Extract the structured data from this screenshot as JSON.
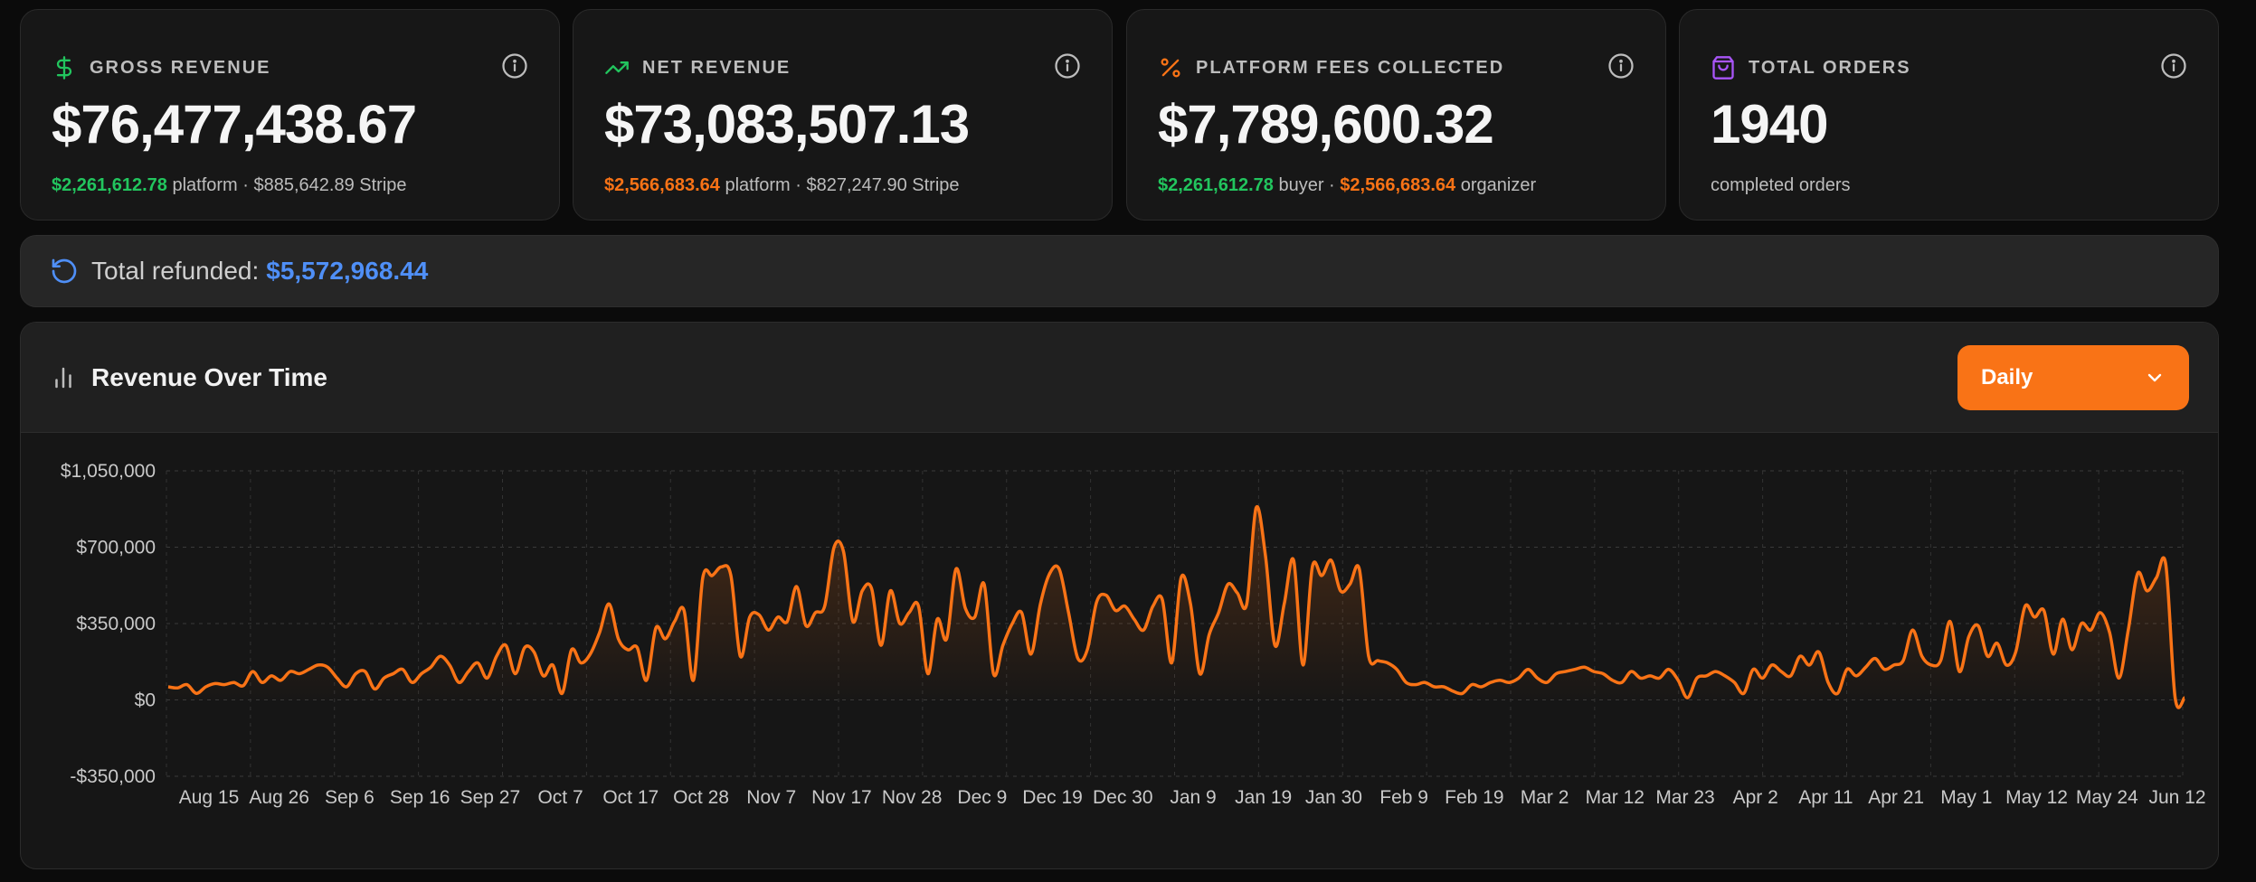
{
  "cards": [
    {
      "label": "GROSS REVENUE",
      "icon": "dollar-icon",
      "icon_color": "#22c55e",
      "value": "$76,477,438.67",
      "sub": [
        {
          "text": "$2,261,612.78",
          "style": "green"
        },
        {
          "text": " platform · $885,642.89 Stripe",
          "style": "plain"
        }
      ]
    },
    {
      "label": "NET REVENUE",
      "icon": "trending-up-icon",
      "icon_color": "#22c55e",
      "value": "$73,083,507.13",
      "sub": [
        {
          "text": "$2,566,683.64",
          "style": "orange"
        },
        {
          "text": " platform · $827,247.90 Stripe",
          "style": "plain"
        }
      ]
    },
    {
      "label": "PLATFORM FEES COLLECTED",
      "icon": "percent-icon",
      "icon_color": "#f97316",
      "value": "$7,789,600.32",
      "sub": [
        {
          "text": "$2,261,612.78",
          "style": "green"
        },
        {
          "text": " buyer · ",
          "style": "plain"
        },
        {
          "text": "$2,566,683.64",
          "style": "orange"
        },
        {
          "text": " organizer",
          "style": "plain"
        }
      ]
    },
    {
      "label": "TOTAL ORDERS",
      "icon": "shopping-bag-icon",
      "icon_color": "#a855f7",
      "value": "1940",
      "sub": [
        {
          "text": "completed orders",
          "style": "plain"
        }
      ]
    }
  ],
  "refund": {
    "label": "Total refunded:",
    "value": "$5,572,968.44",
    "icon": "refresh-icon",
    "color": "#4f8ff7"
  },
  "chart": {
    "title": "Revenue Over Time",
    "icon": "bar-chart-icon",
    "period_select": {
      "value": "Daily",
      "icon": "chevron-down-icon"
    },
    "accent": "#f97316"
  },
  "chart_data": {
    "type": "area",
    "title": "Revenue Over Time",
    "xlabel": "",
    "ylabel": "",
    "ylim": [
      -350000,
      1050000
    ],
    "y_ticks": [
      {
        "value": 1050000,
        "label": "$1,050,000"
      },
      {
        "value": 700000,
        "label": "$700,000"
      },
      {
        "value": 350000,
        "label": "$350,000"
      },
      {
        "value": 0,
        "label": "$0"
      },
      {
        "value": -350000,
        "label": "-$350,000"
      }
    ],
    "x_tick_labels": [
      "Aug 15",
      "Aug 26",
      "Sep 6",
      "Sep 16",
      "Sep 27",
      "Oct 7",
      "Oct 17",
      "Oct 28",
      "Nov 7",
      "Nov 17",
      "Nov 28",
      "Dec 9",
      "Dec 19",
      "Dec 30",
      "Jan 9",
      "Jan 19",
      "Jan 30",
      "Feb 9",
      "Feb 19",
      "Mar 2",
      "Mar 12",
      "Mar 23",
      "Apr 2",
      "Apr 11",
      "Apr 21",
      "May 1",
      "May 12",
      "May 24",
      "Jun 12"
    ],
    "grid": true,
    "series": [
      {
        "color": "#f97316",
        "values": [
          60000,
          55000,
          70000,
          30000,
          60000,
          75000,
          70000,
          80000,
          65000,
          130000,
          80000,
          110000,
          90000,
          130000,
          120000,
          140000,
          160000,
          150000,
          100000,
          60000,
          120000,
          130000,
          50000,
          100000,
          120000,
          140000,
          80000,
          120000,
          150000,
          200000,
          160000,
          80000,
          130000,
          170000,
          100000,
          200000,
          250000,
          120000,
          240000,
          220000,
          110000,
          160000,
          30000,
          230000,
          170000,
          210000,
          310000,
          440000,
          280000,
          230000,
          240000,
          90000,
          330000,
          280000,
          360000,
          410000,
          90000,
          560000,
          570000,
          610000,
          570000,
          200000,
          380000,
          390000,
          320000,
          380000,
          360000,
          520000,
          340000,
          400000,
          430000,
          700000,
          680000,
          360000,
          500000,
          510000,
          250000,
          500000,
          350000,
          400000,
          430000,
          120000,
          370000,
          280000,
          600000,
          420000,
          380000,
          530000,
          120000,
          250000,
          350000,
          400000,
          210000,
          440000,
          580000,
          600000,
          400000,
          190000,
          230000,
          450000,
          480000,
          410000,
          430000,
          370000,
          320000,
          430000,
          460000,
          170000,
          560000,
          440000,
          120000,
          300000,
          400000,
          530000,
          490000,
          440000,
          880000,
          660000,
          250000,
          440000,
          640000,
          160000,
          610000,
          570000,
          640000,
          500000,
          530000,
          600000,
          200000,
          180000,
          170000,
          140000,
          80000,
          70000,
          80000,
          60000,
          60000,
          40000,
          30000,
          70000,
          60000,
          80000,
          90000,
          80000,
          100000,
          140000,
          100000,
          80000,
          120000,
          130000,
          140000,
          150000,
          130000,
          120000,
          90000,
          80000,
          130000,
          100000,
          110000,
          100000,
          140000,
          90000,
          10000,
          100000,
          110000,
          130000,
          110000,
          80000,
          30000,
          140000,
          100000,
          160000,
          130000,
          110000,
          200000,
          160000,
          220000,
          80000,
          30000,
          140000,
          110000,
          150000,
          190000,
          140000,
          160000,
          180000,
          320000,
          200000,
          160000,
          180000,
          360000,
          130000,
          290000,
          340000,
          200000,
          260000,
          160000,
          220000,
          430000,
          380000,
          410000,
          210000,
          370000,
          230000,
          350000,
          320000,
          400000,
          310000,
          100000,
          320000,
          580000,
          500000,
          560000,
          620000,
          10000,
          10000
        ]
      }
    ]
  }
}
